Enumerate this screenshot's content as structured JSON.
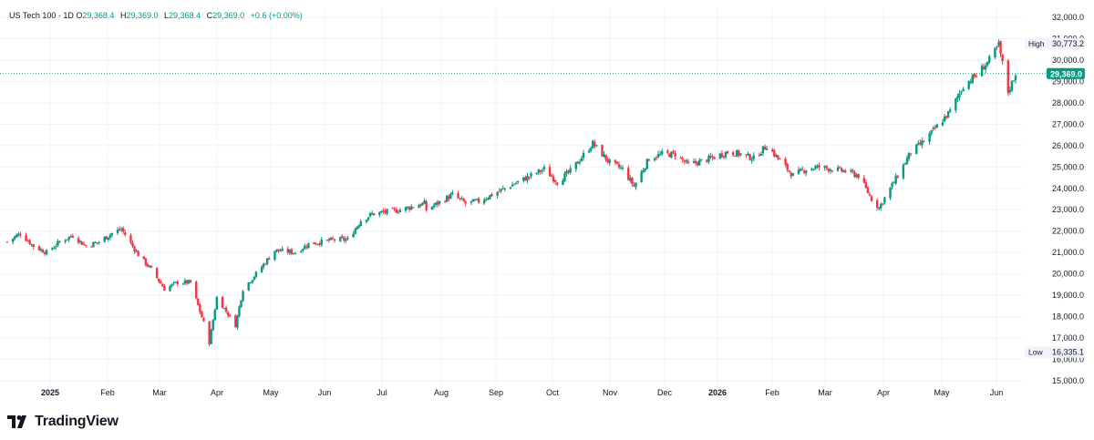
{
  "legend": {
    "symbol": "US Tech 100 · 1D",
    "open_label": "O",
    "open": "29,368.4",
    "high_label": "H",
    "high": "29,369.0",
    "low_label": "L",
    "low": "29,368.4",
    "close_label": "C",
    "close": "29,369.0",
    "change": "+0.6 (+0.00%)"
  },
  "brand": {
    "name": "TradingView"
  },
  "colors": {
    "up": "#089981",
    "down": "#F23645",
    "grid": "#F0F3FA",
    "text": "#131722",
    "price_line": "#089981"
  },
  "chart_data": {
    "type": "candlestick",
    "title": "US Tech 100 · 1D",
    "y_ticks": [
      "32,000.0",
      "31,000.0",
      "30,000.0",
      "29,000.0",
      "28,000.0",
      "27,000.0",
      "26,000.0",
      "25,000.0",
      "24,000.0",
      "23,000.0",
      "22,000.0",
      "21,000.0",
      "20,000.0",
      "19,000.0",
      "18,000.0",
      "17,000.0",
      "16,000.0",
      "15,000.0"
    ],
    "ylim": [
      15000,
      32000
    ],
    "x_ticks": [
      {
        "label": "2025",
        "bold": true,
        "i": 0
      },
      {
        "label": "Feb",
        "bold": false,
        "i": 1
      },
      {
        "label": "Mar",
        "bold": false,
        "i": 2
      },
      {
        "label": "Apr",
        "bold": false,
        "i": 3
      },
      {
        "label": "May",
        "bold": false,
        "i": 4
      },
      {
        "label": "Jun",
        "bold": false,
        "i": 5
      },
      {
        "label": "Jul",
        "bold": false,
        "i": 6
      },
      {
        "label": "Aug",
        "bold": false,
        "i": 7
      },
      {
        "label": "Sep",
        "bold": false,
        "i": 8
      },
      {
        "label": "Oct",
        "bold": false,
        "i": 9
      },
      {
        "label": "Nov",
        "bold": false,
        "i": 10
      },
      {
        "label": "Dec",
        "bold": false,
        "i": 11
      },
      {
        "label": "2026",
        "bold": true,
        "i": 12
      },
      {
        "label": "Feb",
        "bold": false,
        "i": 13
      },
      {
        "label": "Mar",
        "bold": false,
        "i": 14
      },
      {
        "label": "Apr",
        "bold": false,
        "i": 15
      },
      {
        "label": "May",
        "bold": false,
        "i": 16
      },
      {
        "label": "Jun",
        "bold": false,
        "i": 17
      }
    ],
    "approx_close_path": [
      [
        "2024-12-20",
        21500
      ],
      [
        "2024-12-27",
        21900
      ],
      [
        "2025-01-03",
        21300
      ],
      [
        "2025-01-10",
        21000
      ],
      [
        "2025-01-17",
        21500
      ],
      [
        "2025-01-24",
        21800
      ],
      [
        "2025-01-31",
        21300
      ],
      [
        "2025-02-07",
        21500
      ],
      [
        "2025-02-14",
        21900
      ],
      [
        "2025-02-19",
        22100
      ],
      [
        "2025-02-28",
        20900
      ],
      [
        "2025-03-07",
        20200
      ],
      [
        "2025-03-14",
        19300
      ],
      [
        "2025-03-21",
        19600
      ],
      [
        "2025-03-28",
        19600
      ],
      [
        "2025-04-04",
        17700
      ],
      [
        "2025-04-07",
        16800
      ],
      [
        "2025-04-11",
        18900
      ],
      [
        "2025-04-21",
        17600
      ],
      [
        "2025-04-25",
        19300
      ],
      [
        "2025-05-02",
        20000
      ],
      [
        "2025-05-12",
        21100
      ],
      [
        "2025-05-23",
        21000
      ],
      [
        "2025-05-30",
        21400
      ],
      [
        "2025-06-13",
        21600
      ],
      [
        "2025-06-20",
        21600
      ],
      [
        "2025-06-27",
        22500
      ],
      [
        "2025-07-03",
        22800
      ],
      [
        "2025-07-18",
        23000
      ],
      [
        "2025-07-31",
        23300
      ],
      [
        "2025-08-01",
        23000
      ],
      [
        "2025-08-15",
        23700
      ],
      [
        "2025-08-22",
        23300
      ],
      [
        "2025-08-29",
        23400
      ],
      [
        "2025-09-12",
        24000
      ],
      [
        "2025-09-26",
        24600
      ],
      [
        "2025-10-03",
        24900
      ],
      [
        "2025-10-10",
        24300
      ],
      [
        "2025-10-17",
        24800
      ],
      [
        "2025-10-29",
        26100
      ],
      [
        "2025-11-07",
        25200
      ],
      [
        "2025-11-14",
        24900
      ],
      [
        "2025-11-20",
        24100
      ],
      [
        "2025-11-28",
        25400
      ],
      [
        "2025-12-05",
        25600
      ],
      [
        "2025-12-12",
        25600
      ],
      [
        "2025-12-19",
        25100
      ],
      [
        "2025-12-31",
        25400
      ],
      [
        "2026-01-09",
        25700
      ],
      [
        "2026-01-16",
        25600
      ],
      [
        "2026-01-23",
        25400
      ],
      [
        "2026-01-30",
        26000
      ],
      [
        "2026-02-06",
        25300
      ],
      [
        "2026-02-13",
        24600
      ],
      [
        "2026-02-20",
        24900
      ],
      [
        "2026-02-27",
        25000
      ],
      [
        "2026-03-06",
        24900
      ],
      [
        "2026-03-13",
        24800
      ],
      [
        "2026-03-20",
        24600
      ],
      [
        "2026-03-27",
        23500
      ],
      [
        "2026-03-31",
        23100
      ],
      [
        "2026-04-10",
        24600
      ],
      [
        "2026-04-17",
        25700
      ],
      [
        "2026-04-24",
        26200
      ],
      [
        "2026-05-01",
        26900
      ],
      [
        "2026-05-08",
        27600
      ],
      [
        "2026-05-15",
        28800
      ],
      [
        "2026-05-22",
        29300
      ],
      [
        "2026-05-29",
        30000
      ],
      [
        "2026-06-03",
        30700
      ],
      [
        "2026-06-08",
        28500
      ],
      [
        "2026-06-12",
        29369
      ]
    ],
    "last_price": 29369.0,
    "last_price_label": "29,369.0",
    "high": {
      "label": "High",
      "value": 30773.2,
      "text": "30,773.2"
    },
    "low": {
      "label": "Low",
      "value": 16335.1,
      "text": "16,335.1"
    }
  }
}
